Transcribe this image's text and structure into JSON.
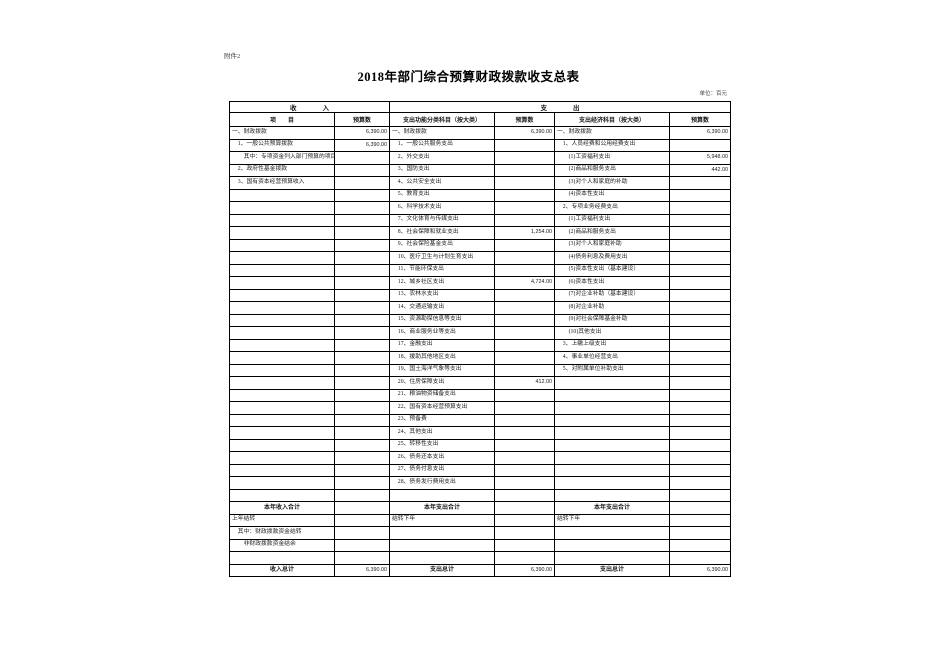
{
  "page": {
    "attachment_label": "附件2",
    "title": "2018年部门综合预算财政拨款收支总表",
    "unit_note": "单位：百元"
  },
  "table": {
    "group_headers": {
      "income": "收　　　　入",
      "expense": "支　　　　出"
    },
    "column_headers": [
      "项　　目",
      "预算数",
      "支出功能分类科目（按大类）",
      "预算数",
      "支出经济科目（按大类）",
      "预算数"
    ],
    "rows": [
      {
        "c": [
          "一、财政拨款",
          "6,390.00",
          "一、财政拨款",
          "6,390.00",
          "一、财政拨款",
          "6,390.00"
        ]
      },
      {
        "c": [
          "　1、一般公共预算拨款",
          "6,390.00",
          "　1、一般公共服务支出",
          "",
          "　1、人员经费和公用经费支出",
          ""
        ]
      },
      {
        "c": [
          "　　其中：专项资金列入部门预算的项目",
          "",
          "　2、外交支出",
          "",
          "　　(1)工资福利支出",
          "5,948.00"
        ]
      },
      {
        "c": [
          "　2、政府性基金拨款",
          "",
          "　3、国防支出",
          "",
          "　　(2)商品和服务支出",
          "442.00"
        ]
      },
      {
        "c": [
          "　3、国有资本经营预算收入",
          "",
          "　4、公共安全支出",
          "",
          "　　(3)对个人和家庭的补助",
          ""
        ]
      },
      {
        "c": [
          "",
          "",
          "　5、教育支出",
          "",
          "　　(4)资本性支出",
          ""
        ]
      },
      {
        "c": [
          "",
          "",
          "　6、科学技术支出",
          "",
          "　2、专项业务经费支出",
          ""
        ]
      },
      {
        "c": [
          "",
          "",
          "　7、文化体育与传媒支出",
          "",
          "　　(1)工资福利支出",
          ""
        ]
      },
      {
        "c": [
          "",
          "",
          "　8、社会保障和就业支出",
          "1,254.00",
          "　　(2)商品和服务支出",
          ""
        ]
      },
      {
        "c": [
          "",
          "",
          "　9、社会保险基金支出",
          "",
          "　　(3)对个人和家庭补助",
          ""
        ]
      },
      {
        "c": [
          "",
          "",
          "　10、医疗卫生与计划生育支出",
          "",
          "　　(4)债务利息及费用支出",
          ""
        ]
      },
      {
        "c": [
          "",
          "",
          "　11、节能环保支出",
          "",
          "　　(5)资本性支出（基本建设）",
          ""
        ]
      },
      {
        "c": [
          "",
          "",
          "　12、城乡社区支出",
          "4,724.00",
          "　　(6)资本性支出",
          ""
        ]
      },
      {
        "c": [
          "",
          "",
          "　13、农林水支出",
          "",
          "　　(7)对企业补助（基本建设）",
          ""
        ]
      },
      {
        "c": [
          "",
          "",
          "　14、交通运输支出",
          "",
          "　　(8)对企业补助",
          ""
        ]
      },
      {
        "c": [
          "",
          "",
          "　15、资源勘探信息等支出",
          "",
          "　　(9)对社会保障基金补助",
          ""
        ]
      },
      {
        "c": [
          "",
          "",
          "　16、商业服务业等支出",
          "",
          "　　(10)其他支出",
          ""
        ]
      },
      {
        "c": [
          "",
          "",
          "　17、金融支出",
          "",
          "　3、上缴上级支出",
          ""
        ]
      },
      {
        "c": [
          "",
          "",
          "　18、援助其他地区支出",
          "",
          "　4、事业单位经营支出",
          ""
        ]
      },
      {
        "c": [
          "",
          "",
          "　19、国土海洋气象等支出",
          "",
          "　5、对附属单位补助支出",
          ""
        ]
      },
      {
        "c": [
          "",
          "",
          "　20、住房保障支出",
          "412.00",
          "",
          ""
        ]
      },
      {
        "c": [
          "",
          "",
          "　21、粮油物资储备支出",
          "",
          "",
          ""
        ]
      },
      {
        "c": [
          "",
          "",
          "　22、国有资本经营预算支出",
          "",
          "",
          ""
        ]
      },
      {
        "c": [
          "",
          "",
          "　23、预备费",
          "",
          "",
          ""
        ]
      },
      {
        "c": [
          "",
          "",
          "　24、其他支出",
          "",
          "",
          ""
        ]
      },
      {
        "c": [
          "",
          "",
          "　25、转移性支出",
          "",
          "",
          ""
        ]
      },
      {
        "c": [
          "",
          "",
          "　26、债务还本支出",
          "",
          "",
          ""
        ]
      },
      {
        "c": [
          "",
          "",
          "　27、债务付息支出",
          "",
          "",
          ""
        ]
      },
      {
        "c": [
          "",
          "",
          "　28、债务发行费用支出",
          "",
          "",
          ""
        ]
      },
      {
        "c": [
          "",
          "",
          "",
          "",
          "",
          ""
        ]
      },
      {
        "c": [
          "本年收入合计",
          "",
          "本年支出合计",
          "",
          "本年支出合计",
          ""
        ],
        "total": true,
        "thick_top": true
      },
      {
        "c": [
          "上年结转",
          "",
          "结转下年",
          "",
          "结转下年",
          ""
        ]
      },
      {
        "c": [
          "　其中：财政拨款资金结转",
          "",
          "",
          "",
          "",
          ""
        ]
      },
      {
        "c": [
          "　　非财政拨款资金结余",
          "",
          "",
          "",
          "",
          ""
        ]
      },
      {
        "c": [
          "",
          "",
          "",
          "",
          "",
          ""
        ]
      },
      {
        "c": [
          "收入总计",
          "6,390.00",
          "支出总计",
          "6,390.00",
          "支出总计",
          "6,390.00"
        ],
        "total": true,
        "thick_top": true
      }
    ]
  }
}
